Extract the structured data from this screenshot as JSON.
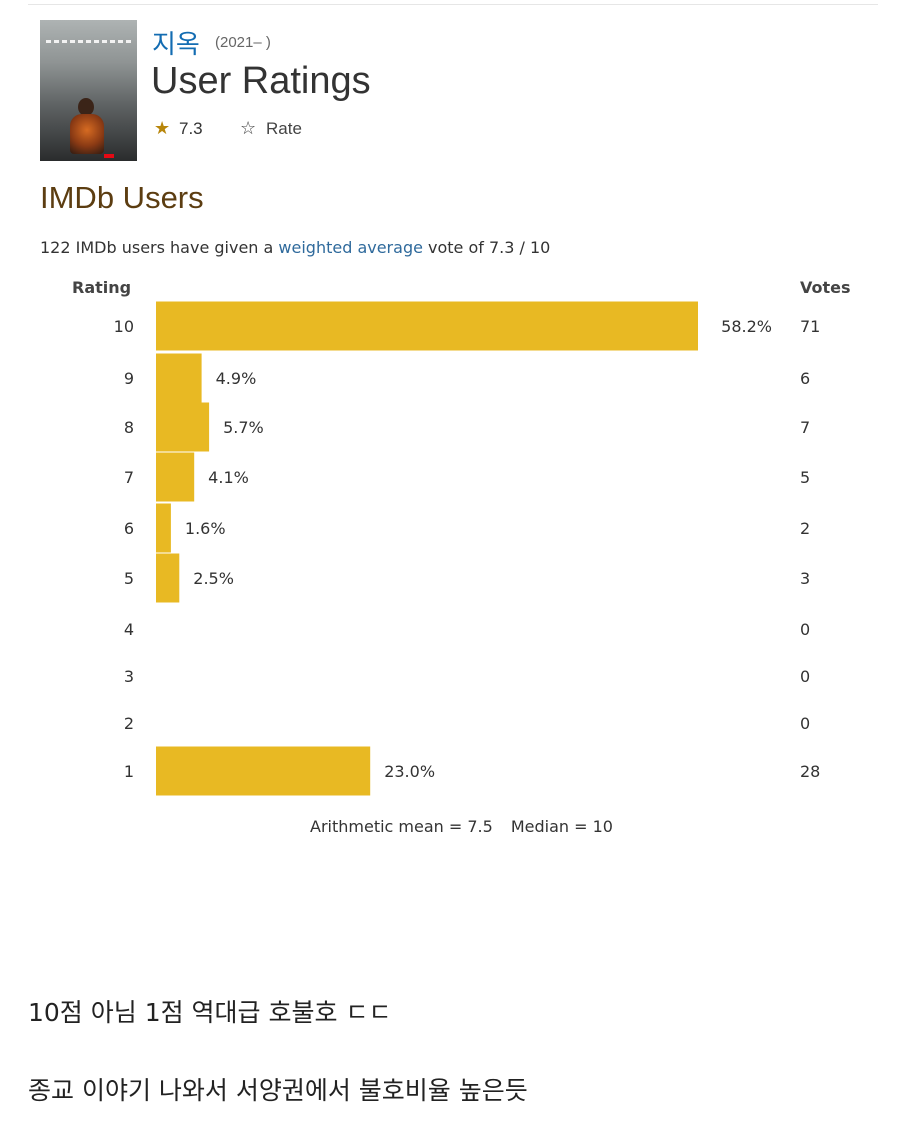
{
  "header": {
    "title": "지옥",
    "years": "(2021– )",
    "page_title": "User Ratings",
    "rating": "7.3",
    "rate_label": "Rate",
    "star_icon": "★",
    "rate_icon": "☆"
  },
  "section": {
    "heading": "IMDb Users",
    "summary_prefix": "122 IMDb users have given a ",
    "summary_link": "weighted average",
    "summary_suffix": " vote of 7.3 / 10"
  },
  "chart_data": {
    "type": "bar",
    "orientation": "horizontal",
    "xlabel": "Rating",
    "ylabel": "Votes",
    "categories": [
      "10",
      "9",
      "8",
      "7",
      "6",
      "5",
      "4",
      "3",
      "2",
      "1"
    ],
    "values": [
      58.2,
      4.9,
      5.7,
      4.1,
      1.6,
      2.5,
      0,
      0,
      0,
      23.0
    ],
    "value_labels": [
      "58.2%",
      "4.9%",
      "5.7%",
      "4.1%",
      "1.6%",
      "2.5%",
      "",
      "",
      "",
      "23.0%"
    ],
    "votes": [
      71,
      6,
      7,
      5,
      2,
      3,
      0,
      0,
      0,
      28
    ],
    "color": "#e8b923",
    "grid": false,
    "legend": "none"
  },
  "stats": {
    "mean": "Arithmetic mean = 7.5",
    "median": "Median = 10"
  },
  "comments": [
    "10점 아님 1점 역대급 호불호 ㄷㄷ",
    "종교 이야기 나와서 서양권에서 불호비율 높은듯"
  ]
}
